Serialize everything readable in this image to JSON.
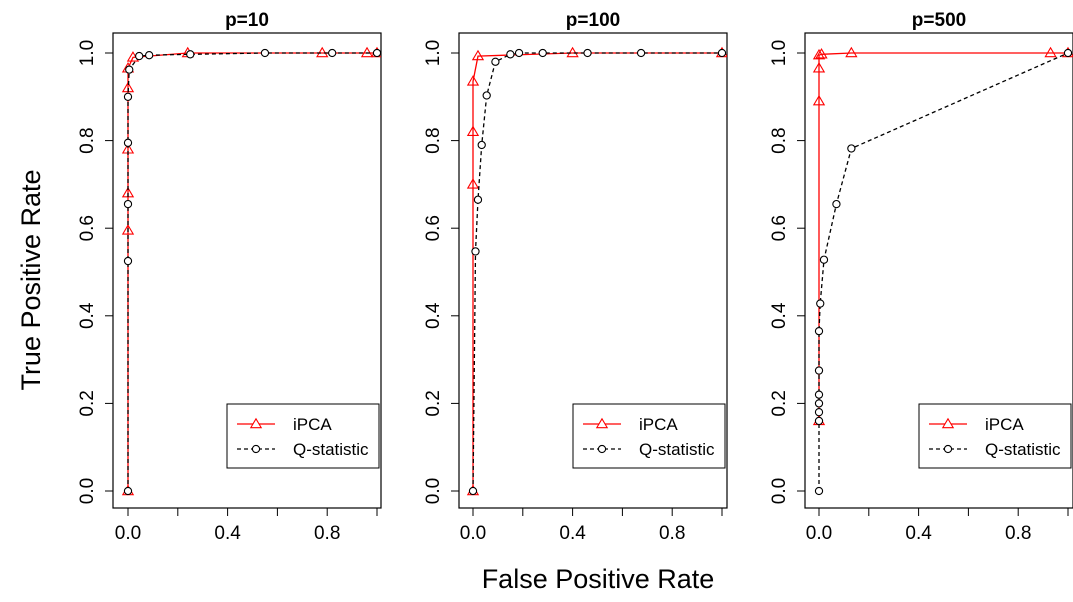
{
  "figure": {
    "xlabel": "False Positive Rate",
    "ylabel": "True Positive Rate"
  },
  "colors": {
    "ipca": "#ff0000",
    "q": "#000000"
  },
  "chart_data": [
    {
      "type": "line",
      "title": "p=10",
      "xlim": [
        0,
        1
      ],
      "ylim": [
        0,
        1
      ],
      "xticks": [
        "0.0",
        "0.4",
        "0.8"
      ],
      "yticks": [
        "0.0",
        "0.2",
        "0.4",
        "0.6",
        "0.8",
        "1.0"
      ],
      "legend_position": "bottom-right",
      "series": [
        {
          "name": "iPCA",
          "style": "solid",
          "marker": "triangle",
          "x": [
            0,
            0,
            0,
            0,
            0,
            0,
            0.02,
            0.24,
            0.78,
            0.96,
            1.0
          ],
          "y": [
            0,
            0.595,
            0.68,
            0.78,
            0.92,
            0.965,
            0.99,
            1.0,
            1.0,
            1.0,
            1.0
          ]
        },
        {
          "name": "Q-statistic",
          "style": "dashed",
          "marker": "circle",
          "x": [
            0,
            0,
            0,
            0,
            0,
            0.005,
            0.045,
            0.085,
            0.25,
            0.55,
            0.82,
            1.0
          ],
          "y": [
            0,
            0.525,
            0.655,
            0.795,
            0.9,
            0.962,
            0.993,
            0.995,
            0.997,
            1.0,
            1.0,
            1.0
          ]
        }
      ]
    },
    {
      "type": "line",
      "title": "p=100",
      "xlim": [
        0,
        1
      ],
      "ylim": [
        0,
        1
      ],
      "xticks": [
        "0.0",
        "0.4",
        "0.8"
      ],
      "yticks": [
        "0.0",
        "0.2",
        "0.4",
        "0.6",
        "0.8",
        "1.0"
      ],
      "legend_position": "bottom-right",
      "series": [
        {
          "name": "iPCA",
          "style": "solid",
          "marker": "triangle",
          "x": [
            0,
            0,
            0,
            0,
            0.02,
            0.4,
            1.0
          ],
          "y": [
            0,
            0.7,
            0.82,
            0.935,
            0.993,
            1.0,
            1.0
          ]
        },
        {
          "name": "Q-statistic",
          "style": "dashed",
          "marker": "circle",
          "x": [
            0,
            0.01,
            0.02,
            0.035,
            0.055,
            0.09,
            0.15,
            0.185,
            0.28,
            0.46,
            0.675,
            1.0
          ],
          "y": [
            0,
            0.547,
            0.665,
            0.79,
            0.903,
            0.98,
            0.997,
            1.0,
            1.0,
            1.0,
            1.0,
            1.0
          ]
        }
      ]
    },
    {
      "type": "line",
      "title": "p=500",
      "xlim": [
        0,
        1
      ],
      "ylim": [
        0,
        1
      ],
      "xticks": [
        "0.0",
        "0.4",
        "0.8"
      ],
      "yticks": [
        "0.0",
        "0.2",
        "0.4",
        "0.6",
        "0.8",
        "1.0"
      ],
      "legend_position": "bottom-right",
      "series": [
        {
          "name": "iPCA",
          "style": "solid",
          "marker": "triangle",
          "x": [
            0,
            0,
            0,
            0,
            0.01,
            0.13,
            0.93,
            1.0
          ],
          "y": [
            0.16,
            0.89,
            0.965,
            0.995,
            0.997,
            1.0,
            1.0,
            1.0
          ]
        },
        {
          "name": "Q-statistic",
          "style": "dashed",
          "marker": "circle",
          "x": [
            0,
            0,
            0,
            0,
            0,
            0,
            0,
            0.005,
            0.02,
            0.07,
            0.13,
            1.0
          ],
          "y": [
            0,
            0.16,
            0.18,
            0.2,
            0.22,
            0.275,
            0.365,
            0.428,
            0.528,
            0.655,
            0.782,
            1.0
          ]
        }
      ]
    }
  ]
}
